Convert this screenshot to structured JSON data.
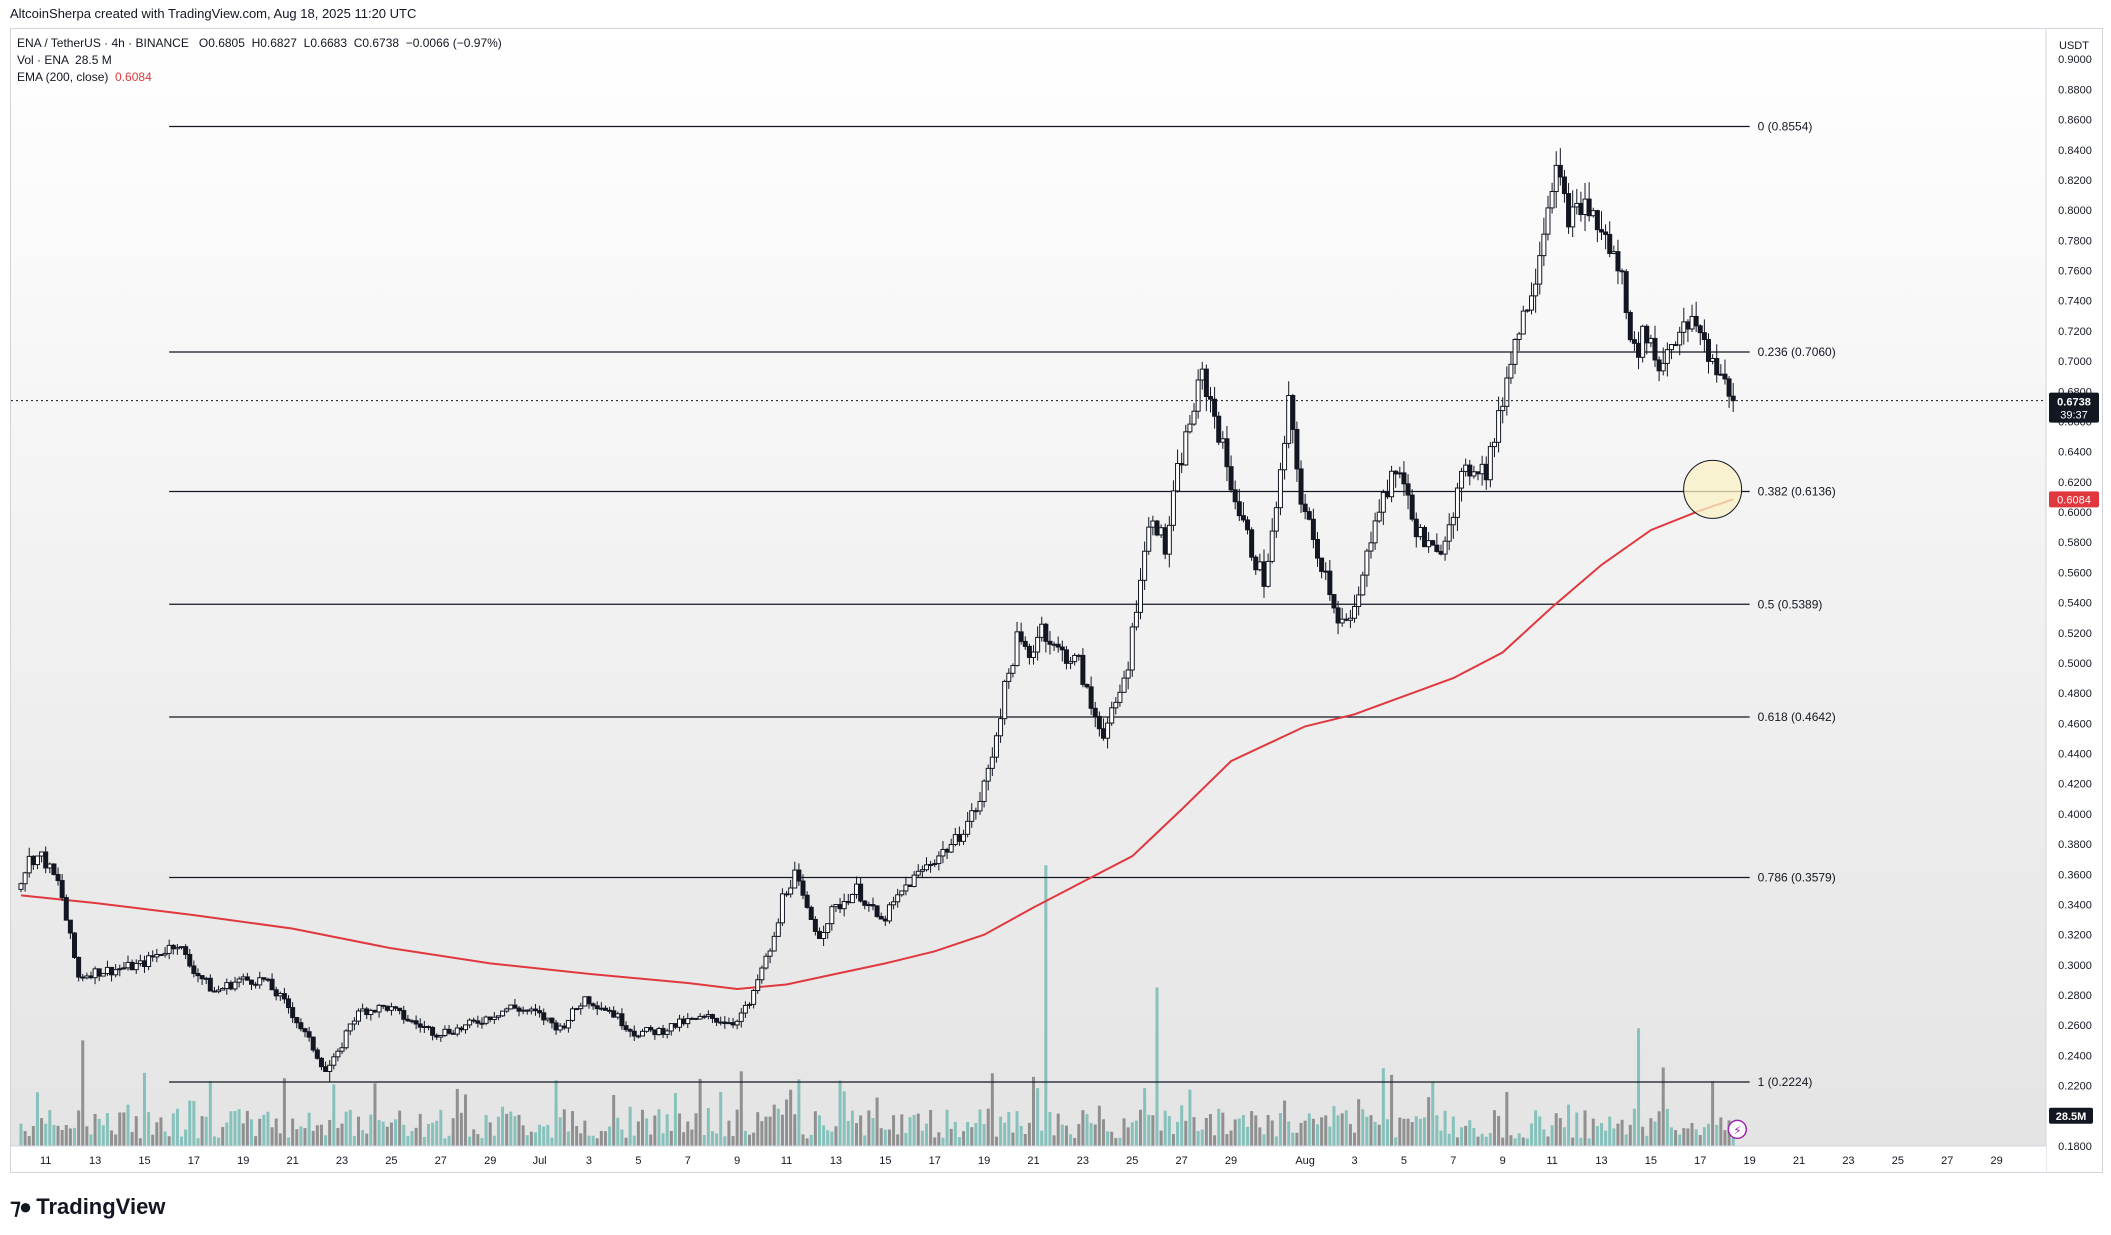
{
  "header": {
    "caption": "AltcoinSherpa created with TradingView.com, Aug 18, 2025 11:20 UTC"
  },
  "legend": {
    "symbol": "ENA / TetherUS · 4h · BINANCE",
    "open_label": "O",
    "open": "0.6805",
    "high_label": "H",
    "high": "0.6827",
    "low_label": "L",
    "low": "0.6683",
    "close_label": "C",
    "close": "0.6738",
    "change": "−0.0066 (−0.97%)",
    "volume_label": "Vol · ENA",
    "volume": "28.5 M",
    "ema_label": "EMA (200, close)",
    "ema": "0.6084"
  },
  "footer": {
    "brand": "TradingView"
  },
  "colors": {
    "candle": "#131722",
    "ema_line": "#e0383e",
    "volume_teal": "#6fb8b0",
    "volume_gray": "#7a7a7a",
    "fib_line": "#131722",
    "highlight_fill": "#fbf1c4",
    "background_top": "#ffffff",
    "background_bottom": "#e4e4e4"
  },
  "chart_data": {
    "type": "candlestick",
    "quote_unit": "USDT",
    "ylim": [
      0.18,
      0.92
    ],
    "y_ticks": [
      0.18,
      0.2,
      0.22,
      0.24,
      0.26,
      0.28,
      0.3,
      0.32,
      0.34,
      0.36,
      0.38,
      0.4,
      0.42,
      0.44,
      0.46,
      0.48,
      0.5,
      0.52,
      0.54,
      0.56,
      0.58,
      0.6,
      0.62,
      0.64,
      0.66,
      0.68,
      0.7,
      0.72,
      0.74,
      0.76,
      0.78,
      0.8,
      0.82,
      0.84,
      0.86,
      0.88,
      0.9
    ],
    "x_range": [
      "2025-06-10",
      "2025-08-31"
    ],
    "x_ticks": [
      {
        "date": "2025-06-11",
        "label": "11"
      },
      {
        "date": "2025-06-13",
        "label": "13"
      },
      {
        "date": "2025-06-15",
        "label": "15"
      },
      {
        "date": "2025-06-17",
        "label": "17"
      },
      {
        "date": "2025-06-19",
        "label": "19"
      },
      {
        "date": "2025-06-21",
        "label": "21"
      },
      {
        "date": "2025-06-23",
        "label": "23"
      },
      {
        "date": "2025-06-25",
        "label": "25"
      },
      {
        "date": "2025-06-27",
        "label": "27"
      },
      {
        "date": "2025-06-29",
        "label": "29"
      },
      {
        "date": "2025-07-01",
        "label": "Jul"
      },
      {
        "date": "2025-07-03",
        "label": "3"
      },
      {
        "date": "2025-07-05",
        "label": "5"
      },
      {
        "date": "2025-07-07",
        "label": "7"
      },
      {
        "date": "2025-07-09",
        "label": "9"
      },
      {
        "date": "2025-07-11",
        "label": "11"
      },
      {
        "date": "2025-07-13",
        "label": "13"
      },
      {
        "date": "2025-07-15",
        "label": "15"
      },
      {
        "date": "2025-07-17",
        "label": "17"
      },
      {
        "date": "2025-07-19",
        "label": "19"
      },
      {
        "date": "2025-07-21",
        "label": "21"
      },
      {
        "date": "2025-07-23",
        "label": "23"
      },
      {
        "date": "2025-07-25",
        "label": "25"
      },
      {
        "date": "2025-07-27",
        "label": "27"
      },
      {
        "date": "2025-07-29",
        "label": "29"
      },
      {
        "date": "2025-08-01",
        "label": "Aug"
      },
      {
        "date": "2025-08-03",
        "label": "3"
      },
      {
        "date": "2025-08-05",
        "label": "5"
      },
      {
        "date": "2025-08-07",
        "label": "7"
      },
      {
        "date": "2025-08-09",
        "label": "9"
      },
      {
        "date": "2025-08-11",
        "label": "11"
      },
      {
        "date": "2025-08-13",
        "label": "13"
      },
      {
        "date": "2025-08-15",
        "label": "15"
      },
      {
        "date": "2025-08-17",
        "label": "17"
      },
      {
        "date": "2025-08-19",
        "label": "19"
      },
      {
        "date": "2025-08-21",
        "label": "21"
      },
      {
        "date": "2025-08-23",
        "label": "23"
      },
      {
        "date": "2025-08-25",
        "label": "25"
      },
      {
        "date": "2025-08-27",
        "label": "27"
      },
      {
        "date": "2025-08-29",
        "label": "29"
      }
    ],
    "price_path": [
      {
        "date": "2025-06-10",
        "price": 0.35
      },
      {
        "date": "2025-06-10T12:00",
        "price": 0.37
      },
      {
        "date": "2025-06-11",
        "price": 0.372
      },
      {
        "date": "2025-06-11T18:00",
        "price": 0.352
      },
      {
        "date": "2025-06-12",
        "price": 0.33
      },
      {
        "date": "2025-06-12T12:00",
        "price": 0.292
      },
      {
        "date": "2025-06-13",
        "price": 0.295
      },
      {
        "date": "2025-06-14",
        "price": 0.297
      },
      {
        "date": "2025-06-15",
        "price": 0.3
      },
      {
        "date": "2025-06-16",
        "price": 0.31
      },
      {
        "date": "2025-06-16T12:00",
        "price": 0.315
      },
      {
        "date": "2025-06-17",
        "price": 0.3
      },
      {
        "date": "2025-06-18",
        "price": 0.282
      },
      {
        "date": "2025-06-19",
        "price": 0.29
      },
      {
        "date": "2025-06-20",
        "price": 0.29
      },
      {
        "date": "2025-06-21",
        "price": 0.272
      },
      {
        "date": "2025-06-22",
        "price": 0.245
      },
      {
        "date": "2025-06-22T12:00",
        "price": 0.23
      },
      {
        "date": "2025-06-23",
        "price": 0.24
      },
      {
        "date": "2025-06-23T12:00",
        "price": 0.262
      },
      {
        "date": "2025-06-24",
        "price": 0.27
      },
      {
        "date": "2025-06-25",
        "price": 0.272
      },
      {
        "date": "2025-06-26",
        "price": 0.262
      },
      {
        "date": "2025-06-27",
        "price": 0.255
      },
      {
        "date": "2025-06-28",
        "price": 0.258
      },
      {
        "date": "2025-06-29",
        "price": 0.265
      },
      {
        "date": "2025-06-30",
        "price": 0.272
      },
      {
        "date": "2025-07-01",
        "price": 0.268
      },
      {
        "date": "2025-07-02",
        "price": 0.258
      },
      {
        "date": "2025-07-03",
        "price": 0.278
      },
      {
        "date": "2025-07-04",
        "price": 0.27
      },
      {
        "date": "2025-07-05",
        "price": 0.255
      },
      {
        "date": "2025-07-06",
        "price": 0.256
      },
      {
        "date": "2025-07-07",
        "price": 0.262
      },
      {
        "date": "2025-07-08",
        "price": 0.265
      },
      {
        "date": "2025-07-09",
        "price": 0.262
      },
      {
        "date": "2025-07-09T18:00",
        "price": 0.275
      },
      {
        "date": "2025-07-10",
        "price": 0.29
      },
      {
        "date": "2025-07-10T18:00",
        "price": 0.32
      },
      {
        "date": "2025-07-11",
        "price": 0.345
      },
      {
        "date": "2025-07-11T12:00",
        "price": 0.36
      },
      {
        "date": "2025-07-12",
        "price": 0.335
      },
      {
        "date": "2025-07-12T12:00",
        "price": 0.32
      },
      {
        "date": "2025-07-13",
        "price": 0.335
      },
      {
        "date": "2025-07-14",
        "price": 0.35
      },
      {
        "date": "2025-07-15",
        "price": 0.328
      },
      {
        "date": "2025-07-16",
        "price": 0.352
      },
      {
        "date": "2025-07-17",
        "price": 0.368
      },
      {
        "date": "2025-07-18",
        "price": 0.382
      },
      {
        "date": "2025-07-19",
        "price": 0.408
      },
      {
        "date": "2025-07-19T12:00",
        "price": 0.44
      },
      {
        "date": "2025-07-20",
        "price": 0.482
      },
      {
        "date": "2025-07-20T12:00",
        "price": 0.515
      },
      {
        "date": "2025-07-21",
        "price": 0.505
      },
      {
        "date": "2025-07-21T12:00",
        "price": 0.525
      },
      {
        "date": "2025-07-22",
        "price": 0.51
      },
      {
        "date": "2025-07-23",
        "price": 0.5
      },
      {
        "date": "2025-07-23T12:00",
        "price": 0.47
      },
      {
        "date": "2025-07-24",
        "price": 0.455
      },
      {
        "date": "2025-07-24T12:00",
        "price": 0.47
      },
      {
        "date": "2025-07-25",
        "price": 0.5
      },
      {
        "date": "2025-07-25T12:00",
        "price": 0.56
      },
      {
        "date": "2025-07-26",
        "price": 0.6
      },
      {
        "date": "2025-07-26T12:00",
        "price": 0.575
      },
      {
        "date": "2025-07-27",
        "price": 0.625
      },
      {
        "date": "2025-07-27T12:00",
        "price": 0.66
      },
      {
        "date": "2025-07-28",
        "price": 0.69
      },
      {
        "date": "2025-07-28T12:00",
        "price": 0.665
      },
      {
        "date": "2025-07-29",
        "price": 0.63
      },
      {
        "date": "2025-07-29T12:00",
        "price": 0.6
      },
      {
        "date": "2025-07-30",
        "price": 0.575
      },
      {
        "date": "2025-07-30T12:00",
        "price": 0.555
      },
      {
        "date": "2025-07-31",
        "price": 0.6
      },
      {
        "date": "2025-07-31T12:00",
        "price": 0.67
      },
      {
        "date": "2025-08-01",
        "price": 0.61
      },
      {
        "date": "2025-08-01T12:00",
        "price": 0.58
      },
      {
        "date": "2025-08-02",
        "price": 0.56
      },
      {
        "date": "2025-08-02T12:00",
        "price": 0.53
      },
      {
        "date": "2025-08-03",
        "price": 0.525
      },
      {
        "date": "2025-08-03T12:00",
        "price": 0.555
      },
      {
        "date": "2025-08-04",
        "price": 0.6
      },
      {
        "date": "2025-08-05",
        "price": 0.63
      },
      {
        "date": "2025-08-05T12:00",
        "price": 0.595
      },
      {
        "date": "2025-08-06",
        "price": 0.58
      },
      {
        "date": "2025-08-06T12:00",
        "price": 0.57
      },
      {
        "date": "2025-08-07",
        "price": 0.595
      },
      {
        "date": "2025-08-07T12:00",
        "price": 0.62
      },
      {
        "date": "2025-08-08",
        "price": 0.632
      },
      {
        "date": "2025-08-08T12:00",
        "price": 0.628
      },
      {
        "date": "2025-08-09",
        "price": 0.66
      },
      {
        "date": "2025-08-09T12:00",
        "price": 0.705
      },
      {
        "date": "2025-08-10",
        "price": 0.73
      },
      {
        "date": "2025-08-10T12:00",
        "price": 0.76
      },
      {
        "date": "2025-08-11",
        "price": 0.805
      },
      {
        "date": "2025-08-11T06:00",
        "price": 0.83
      },
      {
        "date": "2025-08-11T18:00",
        "price": 0.8
      },
      {
        "date": "2025-08-12",
        "price": 0.795
      },
      {
        "date": "2025-08-12T12:00",
        "price": 0.805
      },
      {
        "date": "2025-08-13",
        "price": 0.79
      },
      {
        "date": "2025-08-13T12:00",
        "price": 0.775
      },
      {
        "date": "2025-08-14",
        "price": 0.755
      },
      {
        "date": "2025-08-14T12:00",
        "price": 0.705
      },
      {
        "date": "2025-08-15",
        "price": 0.72
      },
      {
        "date": "2025-08-15T12:00",
        "price": 0.695
      },
      {
        "date": "2025-08-16",
        "price": 0.715
      },
      {
        "date": "2025-08-16T12:00",
        "price": 0.72
      },
      {
        "date": "2025-08-17",
        "price": 0.725
      },
      {
        "date": "2025-08-17T12:00",
        "price": 0.705
      },
      {
        "date": "2025-08-18",
        "price": 0.692
      },
      {
        "date": "2025-08-18T08:00",
        "price": 0.6738
      }
    ],
    "price_extremes": [
      {
        "date": "2025-06-22T12:00",
        "price": 0.2224
      },
      {
        "date": "2025-07-11T06:00",
        "price": 0.392
      },
      {
        "date": "2025-07-21T18:00",
        "price": 0.592
      },
      {
        "date": "2025-07-24T06:00",
        "price": 0.425
      },
      {
        "date": "2025-07-28T06:00",
        "price": 0.7
      },
      {
        "date": "2025-08-03T06:00",
        "price": 0.51
      },
      {
        "date": "2025-08-11T06:00",
        "price": 0.8554
      },
      {
        "date": "2025-08-14T18:00",
        "price": 0.675
      }
    ],
    "ema200": {
      "label": "EMA (200, close)",
      "points": [
        {
          "date": "2025-06-10",
          "value": 0.346
        },
        {
          "date": "2025-06-13",
          "value": 0.341
        },
        {
          "date": "2025-06-17",
          "value": 0.333
        },
        {
          "date": "2025-06-21",
          "value": 0.324
        },
        {
          "date": "2025-06-25",
          "value": 0.311
        },
        {
          "date": "2025-06-29",
          "value": 0.301
        },
        {
          "date": "2025-07-03",
          "value": 0.294
        },
        {
          "date": "2025-07-07",
          "value": 0.288
        },
        {
          "date": "2025-07-09",
          "value": 0.284
        },
        {
          "date": "2025-07-11",
          "value": 0.287
        },
        {
          "date": "2025-07-13",
          "value": 0.294
        },
        {
          "date": "2025-07-15",
          "value": 0.301
        },
        {
          "date": "2025-07-17",
          "value": 0.309
        },
        {
          "date": "2025-07-19",
          "value": 0.32
        },
        {
          "date": "2025-07-21",
          "value": 0.338
        },
        {
          "date": "2025-07-23",
          "value": 0.355
        },
        {
          "date": "2025-07-25",
          "value": 0.372
        },
        {
          "date": "2025-07-27",
          "value": 0.403
        },
        {
          "date": "2025-07-29",
          "value": 0.435
        },
        {
          "date": "2025-08-01",
          "value": 0.458
        },
        {
          "date": "2025-08-03",
          "value": 0.466
        },
        {
          "date": "2025-08-05",
          "value": 0.478
        },
        {
          "date": "2025-08-07",
          "value": 0.49
        },
        {
          "date": "2025-08-09",
          "value": 0.507
        },
        {
          "date": "2025-08-11",
          "value": 0.537
        },
        {
          "date": "2025-08-13",
          "value": 0.565
        },
        {
          "date": "2025-08-15",
          "value": 0.588
        },
        {
          "date": "2025-08-17",
          "value": 0.601
        },
        {
          "date": "2025-08-18T08:00",
          "value": 0.6084
        }
      ]
    },
    "fib_levels": [
      {
        "ratio": "0",
        "price": 0.8554,
        "label": "0 (0.8554)"
      },
      {
        "ratio": "0.236",
        "price": 0.706,
        "label": "0.236 (0.7060)"
      },
      {
        "ratio": "0.382",
        "price": 0.6136,
        "label": "0.382 (0.6136)"
      },
      {
        "ratio": "0.5",
        "price": 0.5389,
        "label": "0.5 (0.5389)"
      },
      {
        "ratio": "0.618",
        "price": 0.4642,
        "label": "0.618 (0.4642)"
      },
      {
        "ratio": "0.786",
        "price": 0.3579,
        "label": "0.786 (0.3579)"
      },
      {
        "ratio": "1",
        "price": 0.2224,
        "label": "1 (0.2224)"
      }
    ],
    "fib_range": [
      "2025-06-16",
      "2025-08-19"
    ],
    "highlight_circle": {
      "date": "2025-08-17T12:00",
      "price": 0.615
    },
    "volume_spikes": [
      {
        "date": "2025-07-11T06:00",
        "volume_axis_price": 0.312,
        "color": "teal"
      },
      {
        "date": "2025-07-21T12:00",
        "volume_axis_price": 0.366,
        "color": "teal"
      },
      {
        "date": "2025-07-26",
        "volume_axis_price": 0.285,
        "color": "teal"
      },
      {
        "date": "2025-08-14T12:00",
        "volume_axis_price": 0.258,
        "color": "teal"
      },
      {
        "date": "2025-08-15T12:00",
        "volume_axis_price": 0.232,
        "color": "gray"
      },
      {
        "date": "2025-06-12T12:00",
        "volume_axis_price": 0.25,
        "color": "gray"
      }
    ],
    "current_price": {
      "value": "0.6738",
      "countdown": "39:37",
      "price": 0.6738
    },
    "ema_price_tag": {
      "value": "0.6084",
      "price": 0.6084
    },
    "volume_tag": {
      "value": "28.5M"
    }
  }
}
